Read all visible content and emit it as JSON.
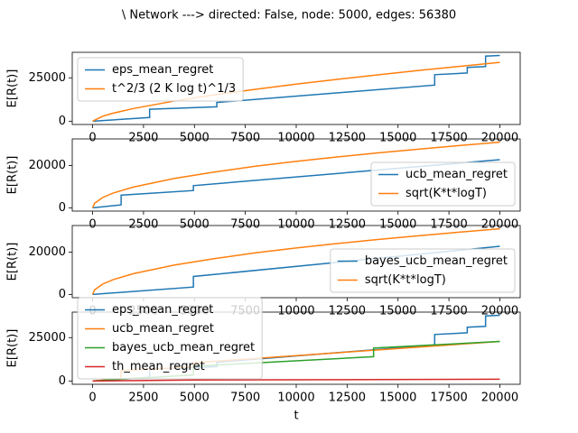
{
  "title": "\\ Network ---> directed: False, node: 5000, edges: 56380",
  "chart_data": [
    {
      "type": "line",
      "ylabel": "E[R(t)]",
      "xlim": [
        -1000,
        21000
      ],
      "ylim": [
        -1900,
        39700
      ],
      "xticks": [
        0,
        2500,
        5000,
        7500,
        10000,
        12500,
        15000,
        17500,
        20000
      ],
      "yticks": [
        0,
        25000
      ],
      "legend": "upper left",
      "series": [
        {
          "name": "eps_mean_regret",
          "color": "#1f77b4",
          "x": [
            0,
            2800,
            2800,
            6100,
            6100,
            16800,
            16800,
            18400,
            18400,
            19300,
            19300,
            20000
          ],
          "values": [
            0,
            2100,
            6900,
            8300,
            10800,
            20800,
            26800,
            27800,
            31000,
            31500,
            37500,
            37900
          ]
        },
        {
          "name": "t^2/3 (2 K log t)^1/3",
          "color": "#ff7f0e",
          "x": [
            0,
            500,
            1000,
            2000,
            4000,
            6000,
            8000,
            10000,
            12000,
            14000,
            16000,
            18000,
            20000
          ],
          "values": [
            0,
            2900,
            4600,
            7300,
            11590,
            15180,
            18400,
            21350,
            24100,
            26720,
            29210,
            31600,
            33900
          ]
        }
      ]
    },
    {
      "type": "line",
      "ylabel": "E[R(t)]",
      "xlim": [
        -1000,
        21000
      ],
      "ylim": [
        -1550,
        32650
      ],
      "xticks": [
        0,
        2500,
        5000,
        7500,
        10000,
        12500,
        15000,
        17500,
        20000
      ],
      "yticks": [
        0,
        20000
      ],
      "legend": "lower right",
      "series": [
        {
          "name": "ucb_mean_regret",
          "color": "#1f77b4",
          "x": [
            0,
            1400,
            1400,
            4950,
            4950,
            20000
          ],
          "values": [
            0,
            1400,
            6000,
            8200,
            10500,
            22800
          ]
        },
        {
          "name": "sqrt(K*t*logT)",
          "color": "#ff7f0e",
          "x": [
            0,
            100,
            500,
            1000,
            2000,
            4000,
            6000,
            8000,
            10000,
            12000,
            14000,
            16000,
            18000,
            20000
          ],
          "values": [
            0,
            2200,
            4920,
            6960,
            9840,
            13900,
            17000,
            19700,
            22000,
            24100,
            26000,
            27800,
            29500,
            31100
          ]
        }
      ]
    },
    {
      "type": "line",
      "ylabel": "E[R(t)]",
      "xlim": [
        -1000,
        21000
      ],
      "ylim": [
        -1550,
        32650
      ],
      "xticks": [
        0,
        2500,
        5000,
        7500,
        10000,
        12500,
        15000,
        17500,
        20000
      ],
      "yticks": [
        0,
        20000
      ],
      "legend": "lower right",
      "series": [
        {
          "name": "bayes_ucb_mean_regret",
          "color": "#1f77b4",
          "x": [
            0,
            4950,
            4950,
            20000
          ],
          "values": [
            0,
            3500,
            8500,
            22800
          ]
        },
        {
          "name": "sqrt(K*t*logT)",
          "color": "#ff7f0e",
          "x": [
            0,
            100,
            500,
            1000,
            2000,
            4000,
            6000,
            8000,
            10000,
            12000,
            14000,
            16000,
            18000,
            20000
          ],
          "values": [
            0,
            2200,
            4920,
            6960,
            9840,
            13900,
            17000,
            19700,
            22000,
            24100,
            26000,
            27800,
            29500,
            31100
          ]
        }
      ]
    },
    {
      "type": "line",
      "ylabel": "E[R(t)]",
      "xlabel": "t",
      "xlim": [
        -1000,
        21000
      ],
      "ylim": [
        -1900,
        39700
      ],
      "xticks": [
        0,
        2500,
        5000,
        7500,
        10000,
        12500,
        15000,
        17500,
        20000
      ],
      "yticks": [
        0,
        25000
      ],
      "legend": "lower left",
      "series": [
        {
          "name": "eps_mean_regret",
          "color": "#1f77b4",
          "x": [
            0,
            2800,
            2800,
            6100,
            6100,
            16800,
            16800,
            18400,
            18400,
            19300,
            19300,
            20000
          ],
          "values": [
            0,
            2100,
            6900,
            8300,
            10800,
            20800,
            26800,
            27800,
            31000,
            31500,
            37500,
            37900
          ]
        },
        {
          "name": "ucb_mean_regret",
          "color": "#ff7f0e",
          "x": [
            0,
            1400,
            1400,
            4950,
            4950,
            20000
          ],
          "values": [
            0,
            1400,
            6000,
            8200,
            10500,
            22800
          ]
        },
        {
          "name": "bayes_ucb_mean_regret",
          "color": "#2ca02c",
          "x": [
            0,
            4950,
            4950,
            13800,
            13800,
            20000
          ],
          "values": [
            0,
            3500,
            8500,
            14000,
            19000,
            22800
          ]
        },
        {
          "name": "th_mean_regret",
          "color": "#d62728",
          "x": [
            0,
            5000,
            20000
          ],
          "values": [
            0,
            600,
            1000
          ]
        }
      ]
    }
  ]
}
